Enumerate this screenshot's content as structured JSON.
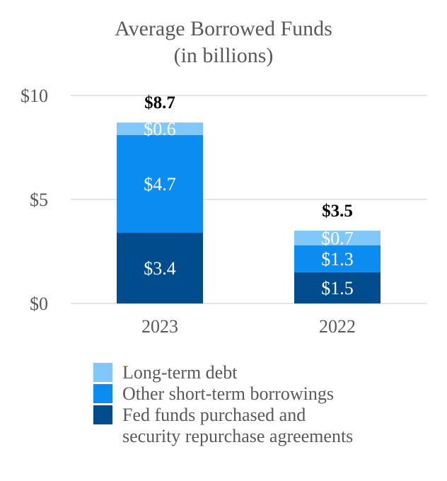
{
  "chart_data": {
    "type": "bar",
    "stacked": true,
    "title_lines": [
      "Average Borrowed Funds",
      "(in billions)"
    ],
    "categories": [
      "2023",
      "2022"
    ],
    "yticks": [
      {
        "value": 0,
        "label": "$0"
      },
      {
        "value": 5,
        "label": "$5"
      },
      {
        "value": 10,
        "label": "$10"
      }
    ],
    "ylim": [
      0,
      10
    ],
    "grid": true,
    "totals": [
      {
        "value": 8.7,
        "label": "$8.7"
      },
      {
        "value": 3.5,
        "label": "$3.5"
      }
    ],
    "series": [
      {
        "name": "Fed funds purchased and\nsecurity repurchase agreements",
        "color": "#004C8C",
        "values": [
          3.4,
          1.5
        ],
        "labels": [
          "$3.4",
          "$1.5"
        ]
      },
      {
        "name": "Other short-term borrowings",
        "color": "#0A8CF0",
        "values": [
          4.7,
          1.3
        ],
        "labels": [
          "$4.7",
          "$1.3"
        ]
      },
      {
        "name": "Long-term debt",
        "color": "#80C8FA",
        "values": [
          0.6,
          0.7
        ],
        "labels": [
          "$0.6",
          "$0.7"
        ]
      }
    ],
    "legend_order": [
      2,
      1,
      0
    ],
    "legend_position": "bottom"
  }
}
